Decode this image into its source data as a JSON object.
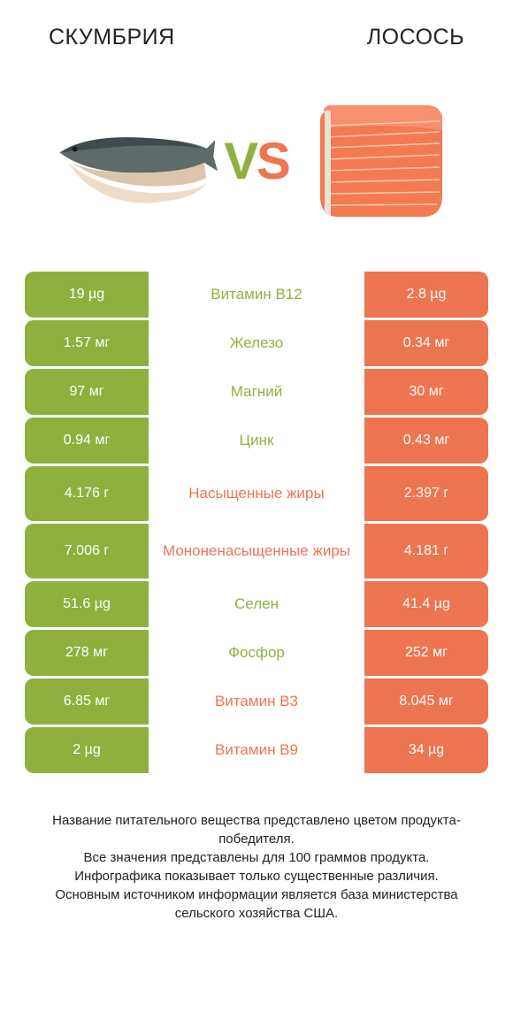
{
  "colors": {
    "left": "#8fb03e",
    "right": "#ed7551",
    "background": "#ffffff",
    "text": "#222222"
  },
  "header": {
    "left_title": "СКУМБРИЯ",
    "right_title": "ЛОСОСЬ"
  },
  "vs": {
    "v": "V",
    "s": "S"
  },
  "rows": [
    {
      "left": "19 µg",
      "label": "Витамин B12",
      "right": "2.8 µg",
      "winner": "left",
      "tall": false
    },
    {
      "left": "1.57 мг",
      "label": "Железо",
      "right": "0.34 мг",
      "winner": "left",
      "tall": false
    },
    {
      "left": "97 мг",
      "label": "Магний",
      "right": "30 мг",
      "winner": "left",
      "tall": false
    },
    {
      "left": "0.94 мг",
      "label": "Цинк",
      "right": "0.43 мг",
      "winner": "left",
      "tall": false
    },
    {
      "left": "4.176 г",
      "label": "Насыщенные жиры",
      "right": "2.397 г",
      "winner": "right",
      "tall": true
    },
    {
      "left": "7.006 г",
      "label": "Мононенасыщенные жиры",
      "right": "4.181 г",
      "winner": "right",
      "tall": true
    },
    {
      "left": "51.6 µg",
      "label": "Селен",
      "right": "41.4 µg",
      "winner": "left",
      "tall": false
    },
    {
      "left": "278 мг",
      "label": "Фосфор",
      "right": "252 мг",
      "winner": "left",
      "tall": false
    },
    {
      "left": "6.85 мг",
      "label": "Витамин B3",
      "right": "8.045 мг",
      "winner": "right",
      "tall": false
    },
    {
      "left": "2 µg",
      "label": "Витамин B9",
      "right": "34 µg",
      "winner": "right",
      "tall": false
    }
  ],
  "footer": {
    "line1": "Название питательного вещества представлено цветом продукта-победителя.",
    "line2": "Все значения представлены для 100 граммов продукта.",
    "line3": "Инфографика показывает только существенные различия.",
    "line4": "Основным источником информации является база министерства сельского хозяйства США."
  }
}
